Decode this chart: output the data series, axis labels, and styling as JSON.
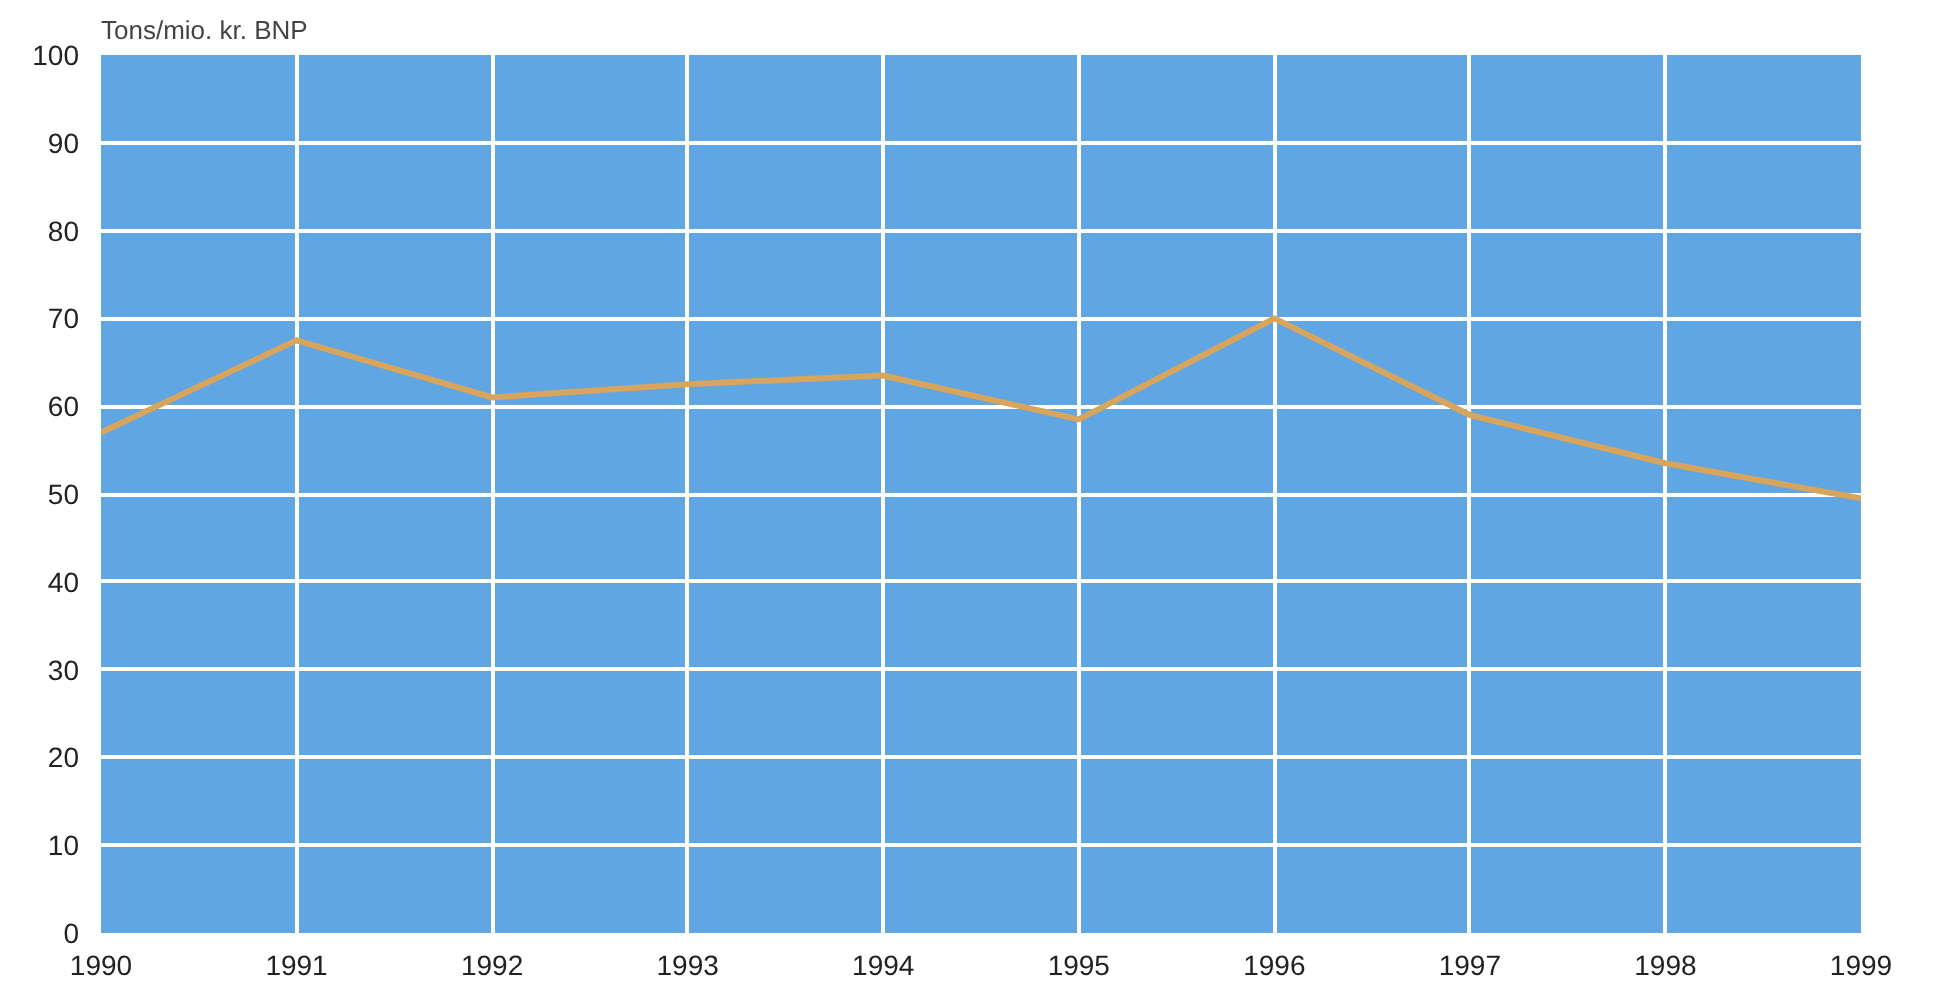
{
  "chart_data": {
    "type": "line",
    "ylabel": "Tons/mio. kr. BNP",
    "x": [
      1990,
      1991,
      1992,
      1993,
      1994,
      1995,
      1996,
      1997,
      1998,
      1999
    ],
    "series": [
      {
        "color": "#d9a45c",
        "values": [
          57,
          67.5,
          61,
          62.5,
          63.5,
          58.5,
          70,
          59,
          53.5,
          49.5
        ]
      }
    ],
    "xlim": [
      1990,
      1999
    ],
    "xticks": [
      1990,
      1991,
      1992,
      1993,
      1994,
      1995,
      1996,
      1997,
      1998,
      1999
    ],
    "ylim": [
      0,
      100
    ],
    "yticks": [
      0,
      10,
      20,
      30,
      40,
      50,
      60,
      70,
      80,
      90,
      100
    ],
    "grid": true,
    "marker": "none",
    "line_style": "solid"
  }
}
